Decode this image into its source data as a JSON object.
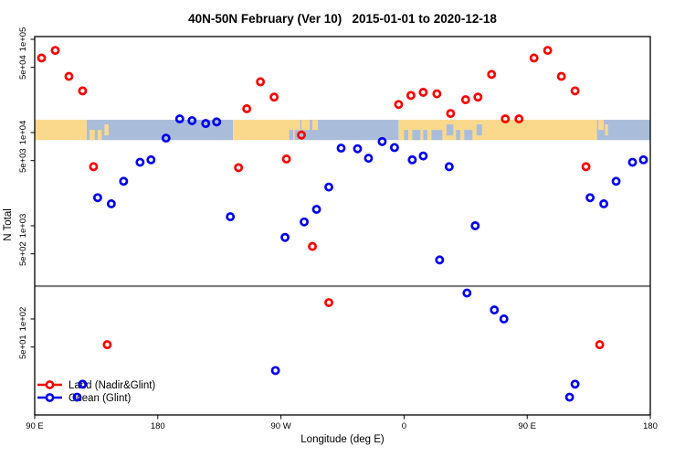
{
  "title": "40N-50N February (Ver 10)   2015-01-01 to 2020-12-18",
  "axes": {
    "x": {
      "label": "Longitude (deg E)",
      "ticks": [
        {
          "deg": 90,
          "label": "90 E"
        },
        {
          "deg": 180,
          "label": "180"
        },
        {
          "deg": 270,
          "label": "90 W"
        },
        {
          "deg": 360,
          "label": "0"
        },
        {
          "deg": 450,
          "label": "90 E"
        },
        {
          "deg": 540,
          "label": "180"
        }
      ]
    },
    "y": {
      "label": "N Total",
      "ticks": [
        {
          "value": 100000,
          "label": "1e+05"
        },
        {
          "value": 50000,
          "label": "5e+04"
        },
        {
          "value": 10000,
          "label": "1e+04"
        },
        {
          "value": 5000,
          "label": "5e+03"
        },
        {
          "value": 1000,
          "label": "1e+03"
        },
        {
          "value": 500,
          "label": "5e+02"
        },
        {
          "value": 100,
          "label": "1e+02"
        },
        {
          "value": 50,
          "label": "5e+01"
        }
      ]
    }
  },
  "legend": [
    {
      "label": "Land (Nadir&Glint)",
      "color": "#FF0000"
    },
    {
      "label": "Ocean (Glint)",
      "color": "#0000EE"
    }
  ],
  "chart_data": {
    "type": "scatter",
    "title": "40N-50N February (Ver 10)   2015-01-01 to 2020-12-18",
    "xlabel": "Longitude (deg E)",
    "ylabel": "N Total",
    "x_axis": {
      "range_deg": [
        90,
        540
      ],
      "note": "longitude increases eastward from 90E and wraps past 360; duplicate points 360 deg apart",
      "grid": false
    },
    "y_axis": {
      "scale": "log10",
      "range": [
        9,
        110000
      ]
    },
    "threshold_line": {
      "value": 225,
      "color": "#7F7F7F"
    },
    "geo_band": {
      "value_range": [
        8300,
        13700
      ],
      "land_color": "#FBD98C",
      "ocean_color": "#A9BDDB",
      "segments": [
        {
          "from": 90,
          "to": 128,
          "type": "land"
        },
        {
          "from": 128,
          "to": 235,
          "type": "ocean"
        },
        {
          "from": 235,
          "to": 284,
          "type": "land"
        },
        {
          "from": 284,
          "to": 356,
          "type": "ocean"
        },
        {
          "from": 356,
          "to": 501,
          "type": "land"
        },
        {
          "from": 501,
          "to": 540,
          "type": "ocean"
        }
      ],
      "patches": [
        {
          "from": 130,
          "to": 134,
          "pos": "bottom",
          "type": "land"
        },
        {
          "from": 136,
          "to": 139,
          "pos": "bottom",
          "type": "land"
        },
        {
          "from": 141,
          "to": 144,
          "pos": "mid",
          "type": "land"
        },
        {
          "from": 276,
          "to": 279,
          "pos": "bottom",
          "type": "ocean"
        },
        {
          "from": 280,
          "to": 283,
          "pos": "bottom",
          "type": "ocean"
        },
        {
          "from": 285,
          "to": 291,
          "pos": "top",
          "type": "land"
        },
        {
          "from": 293,
          "to": 297,
          "pos": "top",
          "type": "land"
        },
        {
          "from": 360,
          "to": 363,
          "pos": "bottom",
          "type": "ocean"
        },
        {
          "from": 366,
          "to": 372,
          "pos": "bottom",
          "type": "ocean"
        },
        {
          "from": 374,
          "to": 377,
          "pos": "bottom",
          "type": "ocean"
        },
        {
          "from": 380,
          "to": 388,
          "pos": "bottom",
          "type": "ocean"
        },
        {
          "from": 391,
          "to": 396,
          "pos": "mid",
          "type": "ocean"
        },
        {
          "from": 398,
          "to": 401,
          "pos": "bottom",
          "type": "ocean"
        },
        {
          "from": 404,
          "to": 410,
          "pos": "bottom",
          "type": "ocean"
        },
        {
          "from": 413,
          "to": 417,
          "pos": "mid",
          "type": "ocean"
        },
        {
          "from": 502,
          "to": 506,
          "pos": "top",
          "type": "land"
        },
        {
          "from": 507,
          "to": 509,
          "pos": "mid",
          "type": "land"
        }
      ]
    },
    "series": [
      {
        "name": "Land (Nadir&Glint)",
        "color": "#FF0000",
        "points": [
          [
            95,
            63000
          ],
          [
            105,
            76000
          ],
          [
            115,
            40000
          ],
          [
            125,
            28000
          ],
          [
            133,
            4300
          ],
          [
            143,
            53
          ],
          [
            239,
            4200
          ],
          [
            245,
            18000
          ],
          [
            255,
            35000
          ],
          [
            265,
            24000
          ],
          [
            274,
            5200
          ],
          [
            285,
            9400
          ],
          [
            293,
            600
          ],
          [
            305,
            150
          ],
          [
            356,
            20000
          ],
          [
            365,
            25000
          ],
          [
            374,
            27000
          ],
          [
            384,
            26000
          ],
          [
            394,
            16000
          ],
          [
            405,
            22500
          ],
          [
            414,
            24000
          ],
          [
            424,
            42000
          ],
          [
            434,
            14000
          ],
          [
            444,
            14000
          ],
          [
            455,
            63000
          ],
          [
            465,
            76000
          ],
          [
            475,
            40000
          ],
          [
            485,
            28000
          ],
          [
            493,
            4300
          ],
          [
            503,
            53
          ]
        ]
      },
      {
        "name": "Ocean (Glint)",
        "color": "#0000EE",
        "points": [
          [
            121,
            14.5
          ],
          [
            125,
            20
          ],
          [
            136,
            2000
          ],
          [
            146,
            1720
          ],
          [
            155,
            3000
          ],
          [
            167,
            4800
          ],
          [
            175,
            5100
          ],
          [
            186,
            8700
          ],
          [
            196,
            14000
          ],
          [
            205,
            13400
          ],
          [
            215,
            12500
          ],
          [
            223,
            13000
          ],
          [
            233,
            1250
          ],
          [
            266,
            28
          ],
          [
            273,
            750
          ],
          [
            287,
            1100
          ],
          [
            296,
            1500
          ],
          [
            305,
            2600
          ],
          [
            314,
            6800
          ],
          [
            326,
            6700
          ],
          [
            334,
            5300
          ],
          [
            344,
            8000
          ],
          [
            353,
            6900
          ],
          [
            366,
            5100
          ],
          [
            374,
            5600
          ],
          [
            386,
            430
          ],
          [
            393,
            4300
          ],
          [
            406,
            190
          ],
          [
            412,
            1000
          ],
          [
            426,
            125
          ],
          [
            433,
            100
          ],
          [
            481,
            14.5
          ],
          [
            485,
            20
          ],
          [
            496,
            2000
          ],
          [
            506,
            1720
          ],
          [
            515,
            3000
          ],
          [
            527,
            4800
          ],
          [
            535,
            5100
          ]
        ]
      }
    ]
  }
}
